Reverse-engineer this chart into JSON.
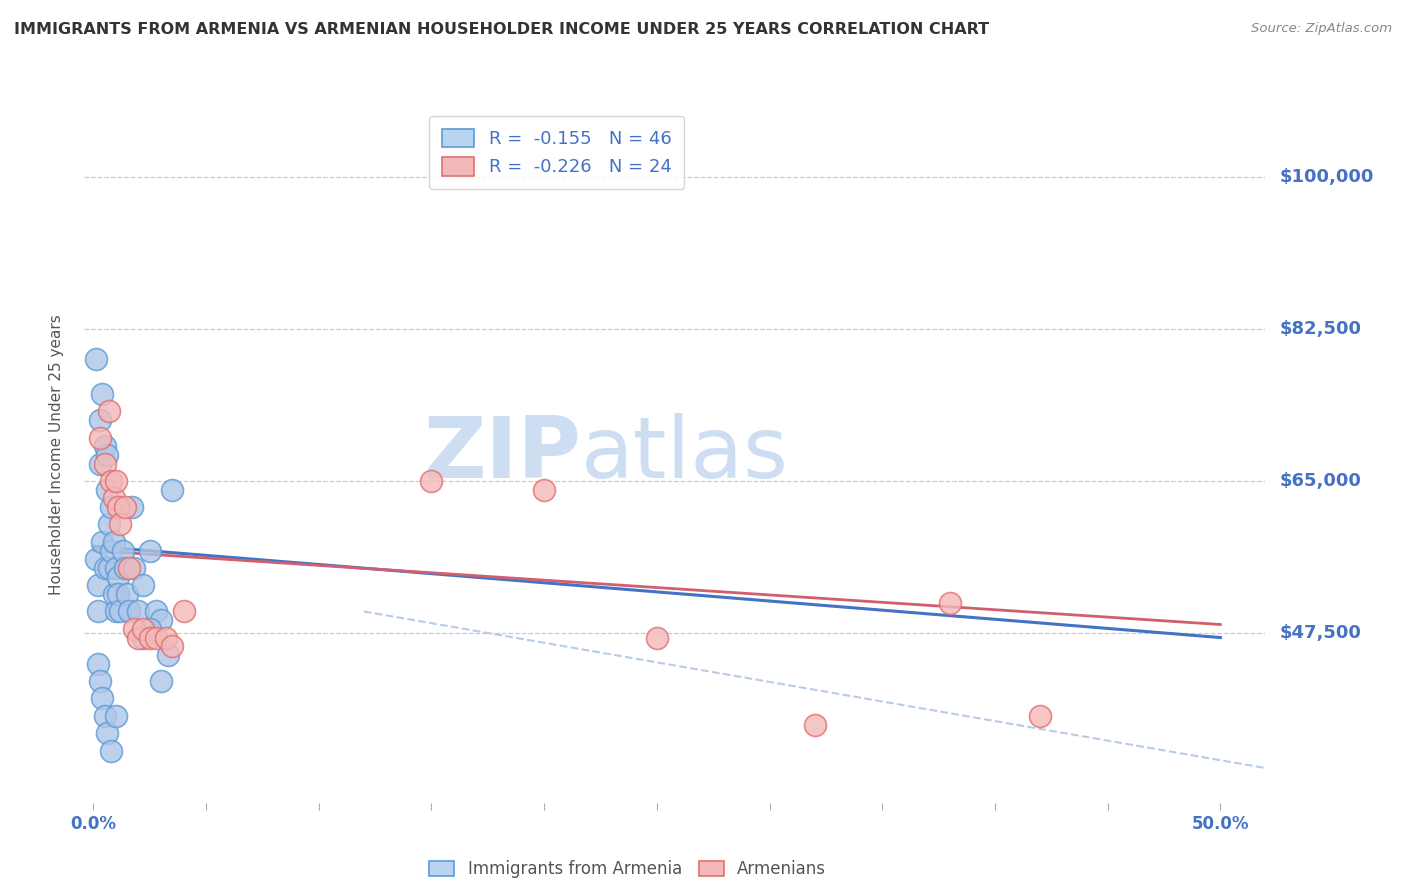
{
  "title": "IMMIGRANTS FROM ARMENIA VS ARMENIAN HOUSEHOLDER INCOME UNDER 25 YEARS CORRELATION CHART",
  "source": "Source: ZipAtlas.com",
  "ylabel": "Householder Income Under 25 years",
  "ytick_labels": [
    "$100,000",
    "$82,500",
    "$65,000",
    "$47,500"
  ],
  "ytick_values": [
    100000,
    82500,
    65000,
    47500
  ],
  "ymin": 28000,
  "ymax": 108000,
  "xmin": -0.004,
  "xmax": 0.52,
  "legend_label1": "R =  -0.155   N = 46",
  "legend_label2": "R =  -0.226   N = 24",
  "watermark_zip": "ZIP",
  "watermark_atlas": "atlas",
  "blue_scatter_x": [
    0.001,
    0.002,
    0.002,
    0.003,
    0.003,
    0.004,
    0.004,
    0.005,
    0.005,
    0.006,
    0.006,
    0.007,
    0.007,
    0.008,
    0.008,
    0.009,
    0.009,
    0.01,
    0.01,
    0.011,
    0.011,
    0.012,
    0.013,
    0.014,
    0.015,
    0.016,
    0.017,
    0.018,
    0.02,
    0.022,
    0.025,
    0.028,
    0.03,
    0.033,
    0.035,
    0.002,
    0.003,
    0.004,
    0.005,
    0.006,
    0.008,
    0.01,
    0.022,
    0.025,
    0.03,
    0.001
  ],
  "blue_scatter_y": [
    56000,
    53000,
    50000,
    72000,
    67000,
    75000,
    58000,
    69000,
    55000,
    68000,
    64000,
    60000,
    55000,
    62000,
    57000,
    58000,
    52000,
    55000,
    50000,
    54000,
    52000,
    50000,
    57000,
    55000,
    52000,
    50000,
    62000,
    55000,
    50000,
    53000,
    57000,
    50000,
    49000,
    45000,
    64000,
    44000,
    42000,
    40000,
    38000,
    36000,
    34000,
    38000,
    47000,
    48000,
    42000,
    79000
  ],
  "pink_scatter_x": [
    0.003,
    0.005,
    0.007,
    0.008,
    0.009,
    0.01,
    0.011,
    0.012,
    0.014,
    0.016,
    0.018,
    0.02,
    0.022,
    0.025,
    0.028,
    0.032,
    0.15,
    0.2,
    0.25,
    0.32,
    0.38,
    0.42,
    0.035,
    0.04
  ],
  "pink_scatter_y": [
    70000,
    67000,
    73000,
    65000,
    63000,
    65000,
    62000,
    60000,
    62000,
    55000,
    48000,
    47000,
    48000,
    47000,
    47000,
    47000,
    65000,
    64000,
    47000,
    37000,
    51000,
    38000,
    46000,
    50000
  ],
  "blue_line_x": [
    0.0,
    0.5
  ],
  "blue_line_y": [
    57500,
    47000
  ],
  "pink_line_x": [
    0.0,
    0.5
  ],
  "pink_line_y": [
    57000,
    48500
  ],
  "dashed_line_x": [
    0.12,
    0.52
  ],
  "dashed_line_y": [
    50000,
    32000
  ],
  "title_color": "#333333",
  "source_color": "#888888",
  "axis_color": "#4472c4",
  "ylabel_color": "#555555",
  "grid_color": "#cccccc",
  "scatter_blue_face": "#aec6e8",
  "scatter_blue_edge": "#5b9bd5",
  "scatter_pink_face": "#f4b8b8",
  "scatter_pink_edge": "#e07070",
  "line_blue": "#4472c4",
  "line_pink": "#d06070",
  "line_dashed_color": "#b8cce4",
  "legend_patch1_face": "#b8d4f0",
  "legend_patch1_edge": "#5b9bd5",
  "legend_patch2_face": "#f4b8b8",
  "legend_patch2_edge": "#e07070"
}
